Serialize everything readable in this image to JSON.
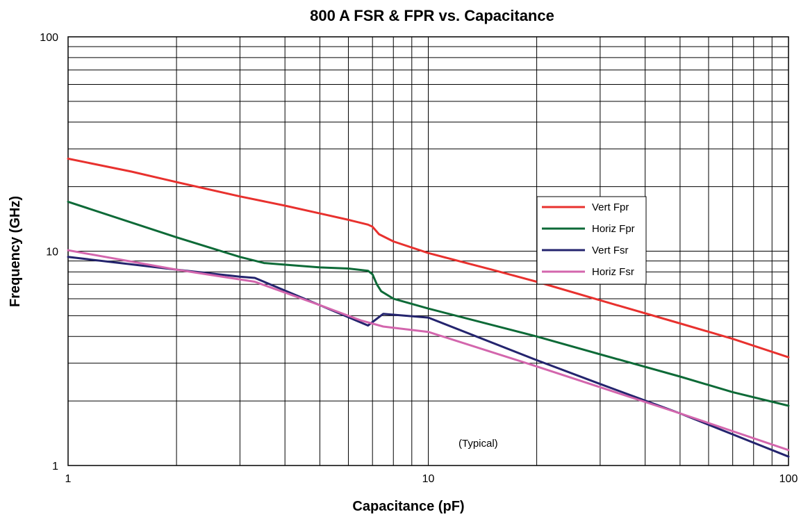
{
  "chart_data": {
    "type": "line",
    "title": "800 A FSR & FPR vs. Capacitance",
    "xlabel": "Capacitance (pF)",
    "ylabel": "Frequency (GHz)",
    "xscale": "log",
    "yscale": "log",
    "xlim": [
      1,
      100
    ],
    "ylim": [
      1,
      100
    ],
    "xticks": [
      {
        "value": 1,
        "label": "1"
      },
      {
        "value": 10,
        "label": "10"
      },
      {
        "value": 100,
        "label": "100"
      }
    ],
    "yticks": [
      {
        "value": 1,
        "label": "1"
      },
      {
        "value": 10,
        "label": "10"
      },
      {
        "value": 100,
        "label": "100"
      }
    ],
    "grid": true,
    "legend_position": "center-right",
    "annotation": "(Typical)",
    "series": [
      {
        "name": "Vert Fpr",
        "color": "#e8312e",
        "x": [
          1,
          1.5,
          2,
          3,
          4,
          5,
          6,
          6.8,
          7,
          7.3,
          8,
          10,
          15,
          20,
          30,
          50,
          70,
          100
        ],
        "y": [
          27,
          23.5,
          21,
          18,
          16.3,
          15,
          14,
          13.3,
          13,
          12,
          11.1,
          9.8,
          8.2,
          7.2,
          5.9,
          4.6,
          3.9,
          3.2
        ]
      },
      {
        "name": "Horiz Fpr",
        "color": "#0d6a37",
        "x": [
          1,
          2,
          3,
          3.5,
          5,
          6,
          6.8,
          7,
          7.2,
          7.4,
          8,
          10,
          20,
          30,
          50,
          70,
          100
        ],
        "y": [
          17,
          11.6,
          9.4,
          8.8,
          8.4,
          8.3,
          8.1,
          7.8,
          7,
          6.5,
          6,
          5.4,
          4,
          3.3,
          2.6,
          2.2,
          1.9
        ]
      },
      {
        "name": "Vert Fsr",
        "color": "#24246e",
        "x": [
          1,
          2,
          3,
          3.3,
          5,
          6.8,
          7.5,
          10,
          20,
          30,
          50,
          100
        ],
        "y": [
          9.4,
          8.2,
          7.6,
          7.5,
          5.6,
          4.5,
          5.1,
          4.9,
          3.1,
          2.4,
          1.75,
          1.1
        ]
      },
      {
        "name": "Horiz Fsr",
        "color": "#d366ad",
        "x": [
          1,
          2,
          3.3,
          5,
          6.5,
          7.5,
          10,
          20,
          50,
          100
        ],
        "y": [
          10.1,
          8.2,
          7.2,
          5.6,
          4.75,
          4.45,
          4.2,
          2.9,
          1.75,
          1.18
        ]
      }
    ]
  }
}
